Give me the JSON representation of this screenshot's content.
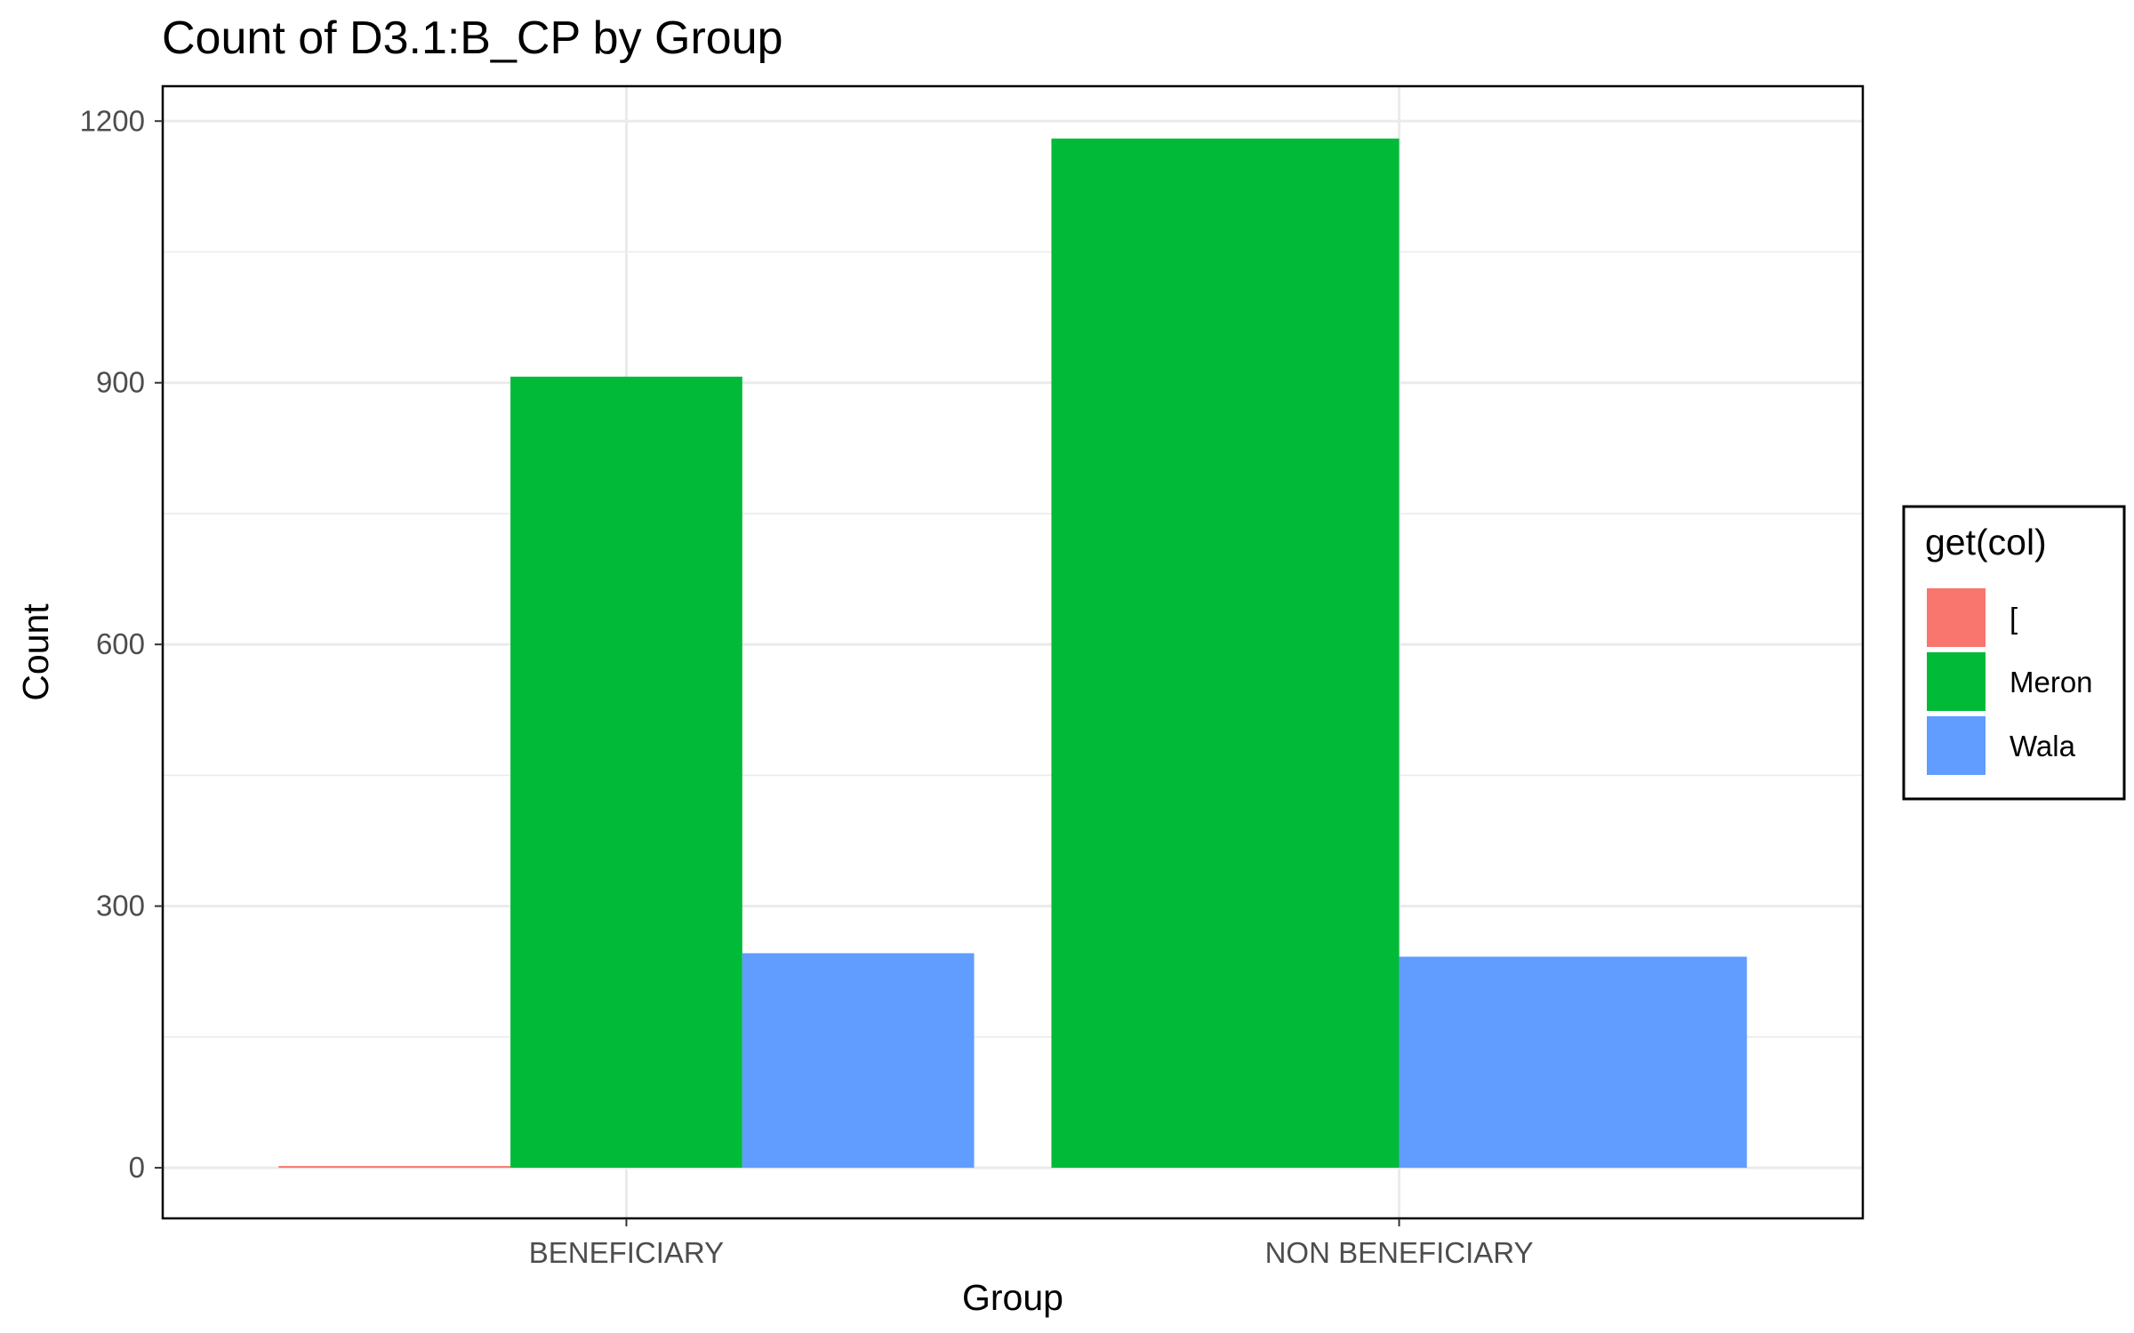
{
  "chart_data": {
    "type": "bar",
    "title": "Count of D3.1:B_CP by Group",
    "xlabel": "Group",
    "ylabel": "Count",
    "categories": [
      "BENEFICIARY",
      "NON BENEFICIARY"
    ],
    "yticks": [
      "0",
      "300",
      "600",
      "900",
      "1200"
    ],
    "ylim": [
      -58,
      1240
    ],
    "grid": true,
    "legend": {
      "title": "get(col)",
      "position": "right"
    },
    "series": [
      {
        "name": "[",
        "color": "#F8766D",
        "values": [
          2,
          null
        ]
      },
      {
        "name": "Meron",
        "color": "#00BA38",
        "values": [
          907,
          1180
        ]
      },
      {
        "name": "Wala",
        "color": "#619CFF",
        "values": [
          246,
          242
        ]
      }
    ]
  }
}
